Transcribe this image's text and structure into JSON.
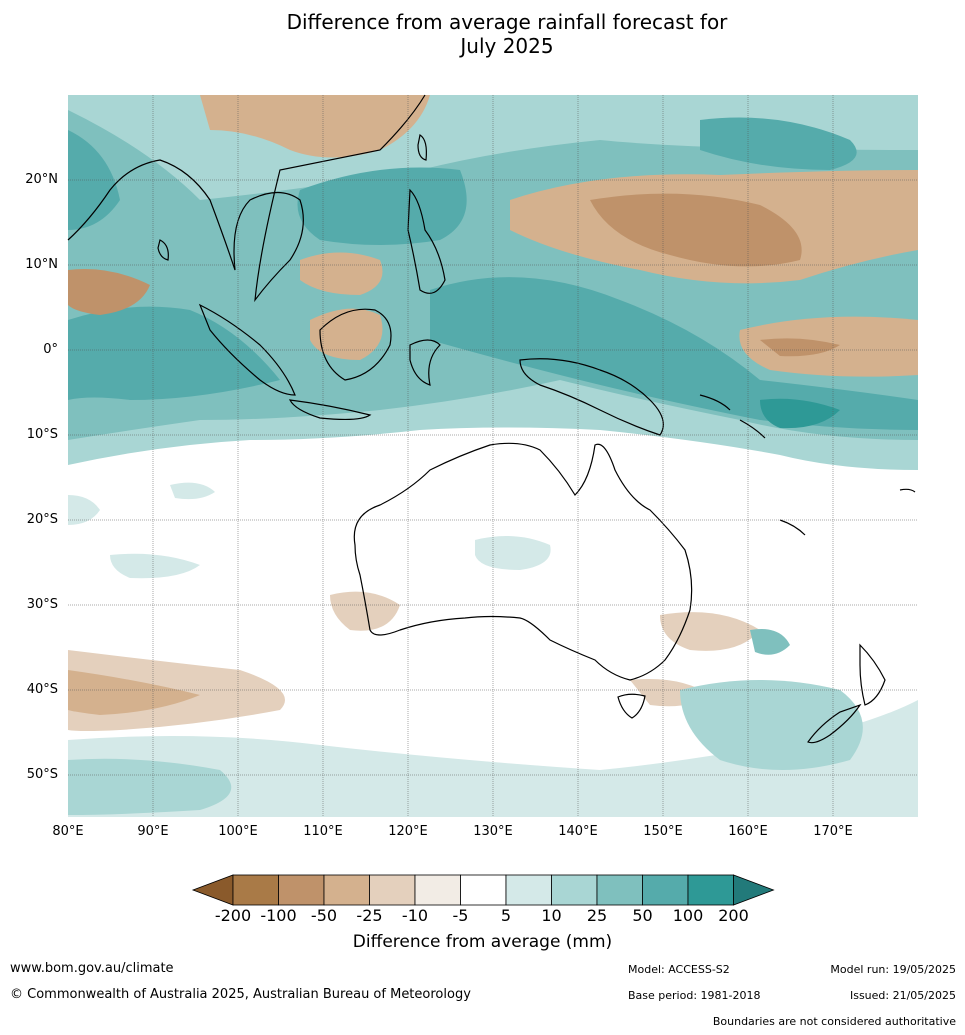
{
  "title_line1": "Difference from average rainfall forecast for",
  "title_line2": "July 2025",
  "lat_labels": [
    "20°N",
    "10°N",
    "0°",
    "10°S",
    "20°S",
    "30°S",
    "40°S",
    "50°S"
  ],
  "lon_labels": [
    "80°E",
    "90°E",
    "100°E",
    "110°E",
    "120°E",
    "130°E",
    "140°E",
    "150°E",
    "160°E",
    "170°E"
  ],
  "colorbar": {
    "labels": [
      "-200",
      "-100",
      "-50",
      "-25",
      "-10",
      "-5",
      "5",
      "10",
      "25",
      "50",
      "100",
      "200"
    ],
    "colors": [
      "#8a5a2b",
      "#a97a47",
      "#bf926a",
      "#d4b18e",
      "#e4d0bd",
      "#f2ece5",
      "#ffffff",
      "#d4e9e8",
      "#a9d6d4",
      "#7fc0be",
      "#55abab",
      "#2e9996",
      "#227a7a"
    ],
    "title": "Difference from average (mm)"
  },
  "footer": {
    "url": "www.bom.gov.au/climate",
    "copyright": "© Commonwealth of Australia 2025, Australian Bureau of Meteorology",
    "model": "Model: ACCESS-S2",
    "base_period": "Base period: 1981-2018",
    "model_run": "Model run: 19/05/2025",
    "issued": "Issued: 21/05/2025",
    "disclaimer": "Boundaries are not considered authoritative"
  }
}
